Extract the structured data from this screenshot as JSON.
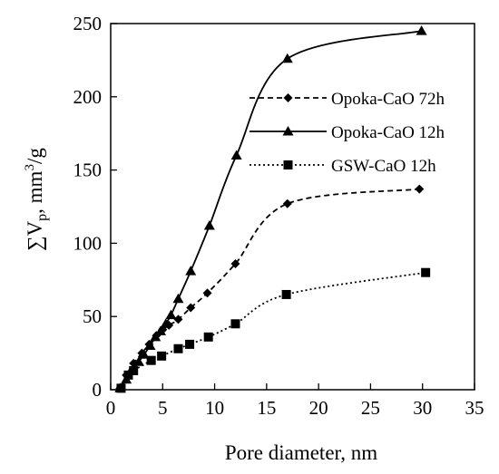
{
  "chart_data": {
    "type": "line",
    "title": "",
    "xlabel": "Pore diameter, nm",
    "ylabel_parts": {
      "sigma": "∑V",
      "sub": "p",
      "unit_pre": ", mm",
      "sup": "3",
      "unit_post": "/g"
    },
    "xlim": [
      0,
      35
    ],
    "ylim": [
      0,
      250
    ],
    "xticks": [
      0,
      5,
      10,
      15,
      20,
      25,
      30,
      35
    ],
    "yticks": [
      0,
      50,
      100,
      150,
      200,
      250
    ],
    "grid": false,
    "legend_position": "top-right",
    "series": [
      {
        "name": "Opoka-CaO 72h",
        "line_style": "dashed",
        "marker": "diamond",
        "color": "#000000",
        "x": [
          0.9,
          1.5,
          2.2,
          3.0,
          3.7,
          4.4,
          5.0,
          5.6,
          6.5,
          7.7,
          9.3,
          12.0,
          17.0,
          29.7
        ],
        "y": [
          1,
          10,
          18,
          25,
          31,
          37,
          41,
          44,
          48,
          56,
          66,
          86,
          127,
          137
        ]
      },
      {
        "name": "Opoka-CaO 12h",
        "line_style": "solid",
        "marker": "triangle",
        "color": "#000000",
        "x": [
          0.9,
          1.5,
          2.1,
          2.7,
          3.2,
          3.8,
          4.3,
          4.8,
          5.3,
          5.8,
          6.5,
          7.7,
          9.5,
          12.1,
          17.0,
          29.9
        ],
        "y": [
          1,
          7,
          13,
          19,
          24,
          30,
          36,
          40,
          45,
          51,
          62,
          81,
          112,
          160,
          226,
          245
        ]
      },
      {
        "name": "GSW-CaO 12h",
        "line_style": "dotted",
        "marker": "square",
        "color": "#000000",
        "x": [
          1.0,
          1.7,
          2.2,
          3.9,
          4.9,
          6.5,
          7.6,
          9.4,
          12.0,
          16.9,
          30.3
        ],
        "y": [
          1,
          10,
          13,
          20,
          23,
          28,
          31,
          36,
          45,
          65,
          80
        ]
      }
    ]
  }
}
